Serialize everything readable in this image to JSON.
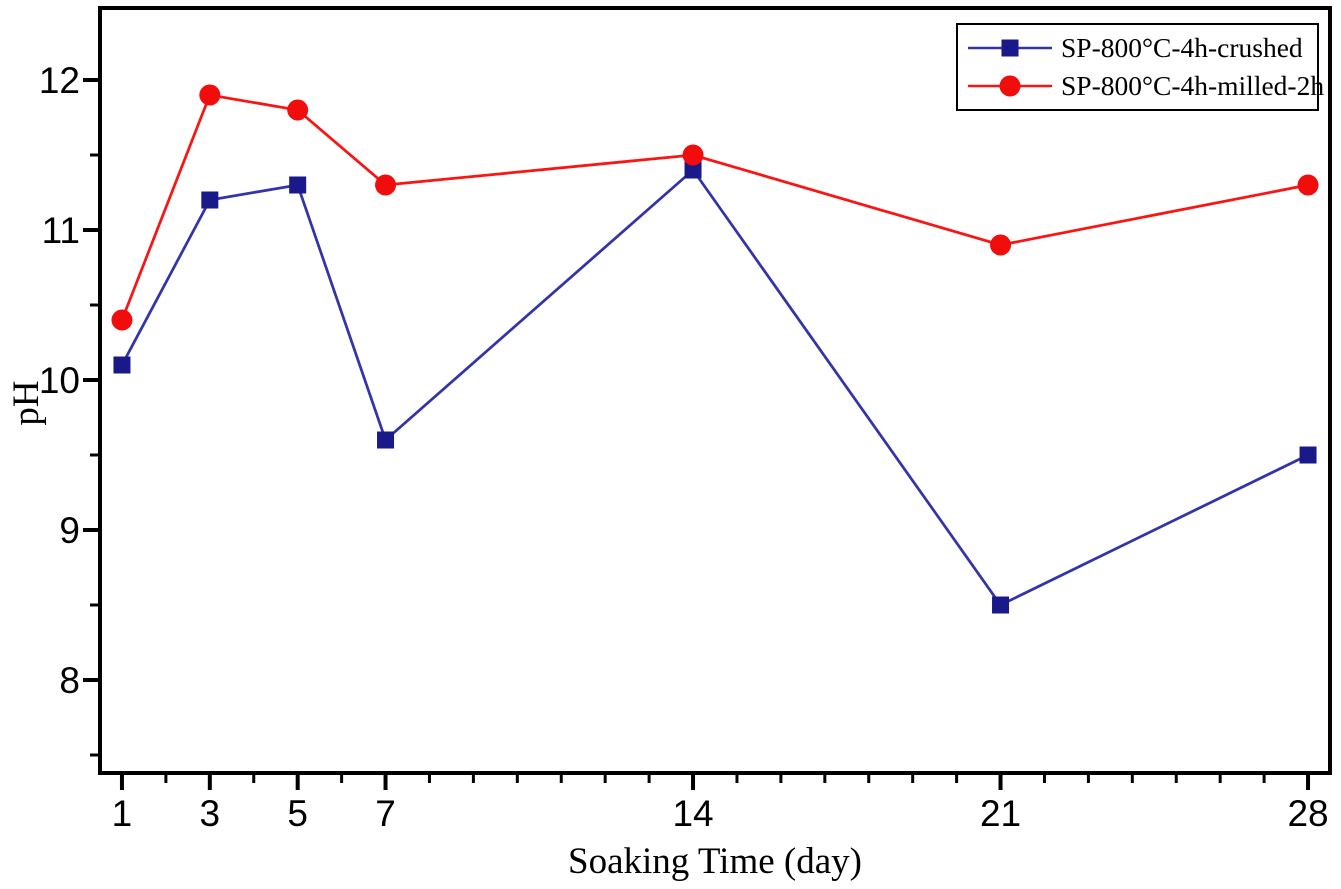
{
  "chart_data": {
    "type": "line",
    "title": "",
    "xlabel": "Soaking Time (day)",
    "ylabel": "pH",
    "x": [
      1,
      3,
      5,
      7,
      14,
      21,
      28
    ],
    "series": [
      {
        "name": "SP-800°C-4h-crushed",
        "marker": "square",
        "marker_color": "#191989",
        "line_color": "#3333aa",
        "values": [
          10.1,
          11.2,
          11.3,
          9.6,
          11.4,
          8.5,
          9.5
        ]
      },
      {
        "name": "SP-800°C-4h-milled-2h",
        "marker": "circle",
        "marker_color": "#f20d0d",
        "line_color": "#fb1414",
        "values": [
          10.4,
          11.9,
          11.8,
          11.3,
          11.5,
          10.9,
          11.3
        ]
      }
    ],
    "xlim": [
      0.5,
      28.5
    ],
    "ylim": [
      7.38,
      12.48
    ],
    "x_major_ticks": [
      1,
      3,
      5,
      7,
      14,
      21,
      28
    ],
    "x_minor_ticks": [
      2,
      4,
      6,
      8,
      9,
      10,
      11,
      12,
      13,
      15,
      16,
      17,
      18,
      19,
      20,
      22,
      23,
      24,
      25,
      26,
      27
    ],
    "y_major_ticks": [
      8,
      9,
      10,
      11,
      12
    ],
    "y_minor_ticks": [
      7.5,
      8.5,
      9.5,
      10.5,
      11.5
    ],
    "grid": false,
    "legend_position": "top-right",
    "axis_color": "#000000",
    "background_color": "#ffffff"
  },
  "legend": {
    "entries": [
      {
        "label": "SP-800°C-4h-crushed"
      },
      {
        "label": "SP-800°C-4h-milled-2h"
      }
    ]
  }
}
